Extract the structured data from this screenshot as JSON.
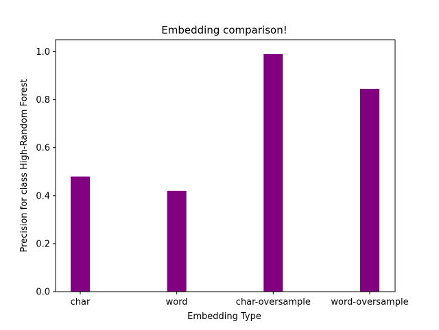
{
  "chart_data": {
    "type": "bar",
    "title": "Embedding comparison!",
    "xlabel": "Embedding Type",
    "ylabel": "Precision for class High-Random Forest",
    "categories": [
      "char",
      "word",
      "char-oversample",
      "word-oversample"
    ],
    "values": [
      0.48,
      0.42,
      0.99,
      0.845
    ],
    "ylim": [
      0,
      1.05
    ],
    "yticks": [
      0.0,
      0.2,
      0.4,
      0.6,
      0.8,
      1.0
    ],
    "ytick_labels": [
      "0.0",
      "0.2",
      "0.4",
      "0.6",
      "0.8",
      "1.0"
    ],
    "grid": false,
    "legend": null,
    "bar_color": "#800080"
  }
}
